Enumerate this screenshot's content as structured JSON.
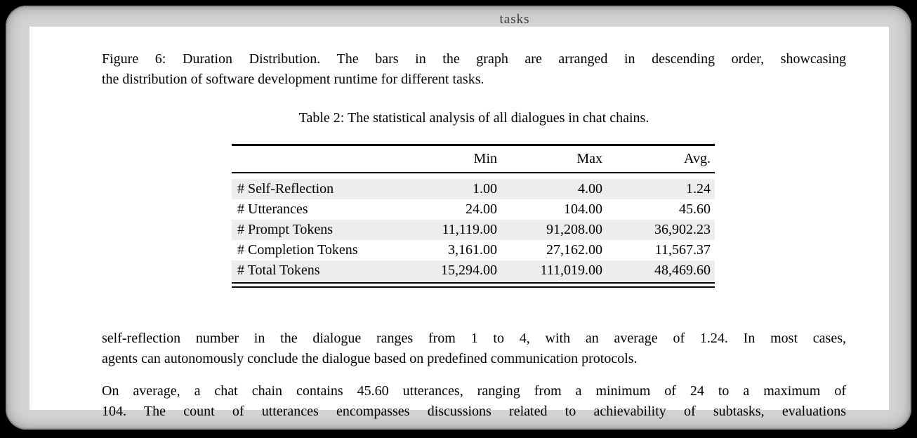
{
  "colors": {
    "background": "#000000",
    "window_gray": "#d4d4d4",
    "page_white": "#ffffff",
    "row_shade": "#ededed",
    "text": "#000000",
    "clipped_label_gray": "#3a3a3a"
  },
  "page": {
    "clipped_top_label": "tasks",
    "figure_caption": {
      "lines": [
        "Figure 6: Duration Distribution. The bars in the graph are arranged in descending order, showcasing",
        "the distribution of software development runtime for different tasks."
      ]
    },
    "table": {
      "caption": "Table 2: The statistical analysis of all dialogues in chat chains.",
      "columns": [
        "",
        "Min",
        "Max",
        "Avg."
      ],
      "rows": [
        {
          "label": "# Self-Reflection",
          "min": "1.00",
          "max": "4.00",
          "avg": "1.24"
        },
        {
          "label": "# Utterances",
          "min": "24.00",
          "max": "104.00",
          "avg": "45.60"
        },
        {
          "label": "# Prompt Tokens",
          "min": "11,119.00",
          "max": "91,208.00",
          "avg": "36,902.23"
        },
        {
          "label": "# Completion Tokens",
          "min": "3,161.00",
          "max": "27,162.00",
          "avg": "11,567.37"
        },
        {
          "label": "# Total Tokens",
          "min": "15,294.00",
          "max": "111,019.00",
          "avg": "48,469.60"
        }
      ]
    },
    "paragraphs": [
      {
        "lines": [
          "self-reflection number in the dialogue ranges from 1 to 4, with an average of 1.24. In most cases,",
          "agents can autonomously conclude the dialogue based on predefined communication protocols."
        ]
      },
      {
        "lines": [
          "On average, a chat chain contains 45.60 utterances, ranging from a minimum of 24 to a maximum of",
          "104. The count of utterances encompasses discussions related to achievability of subtasks, evaluations"
        ]
      }
    ]
  }
}
